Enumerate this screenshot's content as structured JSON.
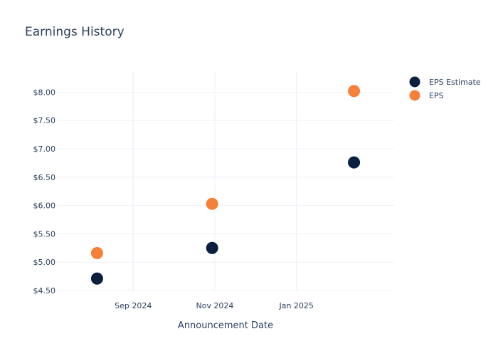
{
  "chart_data": {
    "type": "scatter",
    "title": "Earnings History",
    "xlabel": "Announcement Date",
    "ylabel": "",
    "x_ticks": [
      {
        "label": "Sep 2024",
        "date": "2024-09-01"
      },
      {
        "label": "Nov 2024",
        "date": "2024-11-01"
      },
      {
        "label": "Jan 2025",
        "date": "2025-01-01"
      }
    ],
    "xlim": [
      "2024-07-06",
      "2025-03-15"
    ],
    "y_ticks": [
      {
        "label": "$4.50",
        "value": 4.5
      },
      {
        "label": "$5.00",
        "value": 5.0
      },
      {
        "label": "$5.50",
        "value": 5.5
      },
      {
        "label": "$6.00",
        "value": 6.0
      },
      {
        "label": "$6.50",
        "value": 6.5
      },
      {
        "label": "$7.00",
        "value": 7.0
      },
      {
        "label": "$7.50",
        "value": 7.5
      },
      {
        "label": "$8.00",
        "value": 8.0
      }
    ],
    "ylim": [
      4.5,
      8.37
    ],
    "grid": true,
    "legend_position": "top-right",
    "series": [
      {
        "name": "EPS Estimate",
        "color": "#0b1f3f",
        "x": [
          "2024-08-05",
          "2024-10-30",
          "2025-02-13"
        ],
        "y": [
          4.71,
          5.25,
          6.76
        ]
      },
      {
        "name": "EPS",
        "color": "#f4803a",
        "x": [
          "2024-08-05",
          "2024-10-30",
          "2025-02-13"
        ],
        "y": [
          5.16,
          6.03,
          8.02
        ]
      }
    ]
  }
}
